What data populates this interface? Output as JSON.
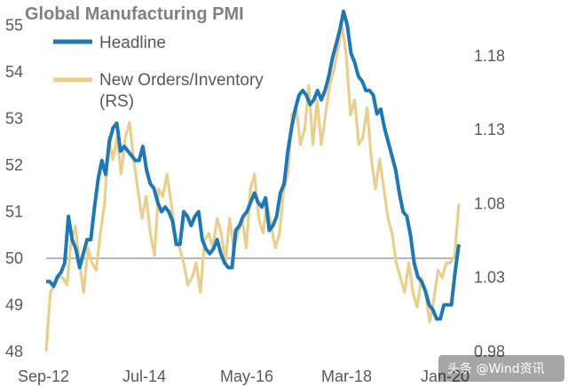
{
  "chart_data": {
    "type": "line",
    "title": "Global Manufacturing PMI",
    "x_ticks": [
      "Sep-12",
      "Jul-14",
      "May-16",
      "Mar-18",
      "Jan-20"
    ],
    "y_left": {
      "ticks": [
        "48",
        "49",
        "50",
        "51",
        "52",
        "53",
        "54",
        "55"
      ],
      "range": [
        48,
        55.2
      ]
    },
    "y_right": {
      "ticks": [
        "0.98",
        "1.03",
        "1.08",
        "1.13",
        "1.18"
      ],
      "range": [
        0.98,
        1.207
      ]
    },
    "reference_line": 50,
    "grid": false,
    "legend_position": "top-left",
    "colors": {
      "headline": "#1f77b4",
      "new_orders": "#e8cf8e",
      "axis": "#808080"
    },
    "series": [
      {
        "name": "Headline",
        "axis": "left",
        "values": [
          49.5,
          49.5,
          49.4,
          49.6,
          49.7,
          49.9,
          50.9,
          50.4,
          50.2,
          49.8,
          50.1,
          50.4,
          50.4,
          51.1,
          51.7,
          52.1,
          51.8,
          52.5,
          52.8,
          52.9,
          52.3,
          52.4,
          52.3,
          52.2,
          52.1,
          52.1,
          52.4,
          51.9,
          51.6,
          51.5,
          51.2,
          51.0,
          51.1,
          51.0,
          50.8,
          50.3,
          50.3,
          51.0,
          50.9,
          50.7,
          50.9,
          51.0,
          50.4,
          50.2,
          50.1,
          50.2,
          50.4,
          50.1,
          49.9,
          49.8,
          49.8,
          50.6,
          50.7,
          50.9,
          51.0,
          51.2,
          51.4,
          51.2,
          51.1,
          51.3,
          50.6,
          50.7,
          50.9,
          51.4,
          51.6,
          52.3,
          52.8,
          53.2,
          53.5,
          53.6,
          53.5,
          53.3,
          53.4,
          53.6,
          53.4,
          53.6,
          53.9,
          54.3,
          54.6,
          54.9,
          55.3,
          55.0,
          54.4,
          54.2,
          53.9,
          53.8,
          53.6,
          53.6,
          53.5,
          53.1,
          53.2,
          52.8,
          52.5,
          52.2,
          51.9,
          51.4,
          51.0,
          50.9,
          50.5,
          49.9,
          49.6,
          49.5,
          49.3,
          49.0,
          48.9,
          48.7,
          48.7,
          49.0,
          49.0,
          49.0,
          49.7,
          50.3
        ]
      },
      {
        "name": "New Orders/Inventory (RS)",
        "axis": "right",
        "values": [
          0.98,
          1.02,
          1.025,
          1.03,
          1.03,
          1.025,
          1.055,
          1.065,
          1.04,
          1.02,
          1.05,
          1.04,
          1.035,
          1.06,
          1.08,
          1.125,
          1.11,
          1.125,
          1.1,
          1.125,
          1.135,
          1.11,
          1.09,
          1.07,
          1.085,
          1.06,
          1.045,
          1.09,
          1.085,
          1.1,
          1.08,
          1.06,
          1.05,
          1.04,
          1.025,
          1.03,
          1.04,
          1.02,
          1.055,
          1.06,
          1.05,
          1.07,
          1.06,
          1.04,
          1.07,
          1.05,
          1.06,
          1.07,
          1.05,
          1.09,
          1.1,
          1.07,
          1.06,
          1.08,
          1.065,
          1.05,
          1.06,
          1.09,
          1.1,
          1.14,
          1.145,
          1.12,
          1.13,
          1.16,
          1.12,
          1.15,
          1.12,
          1.14,
          1.16,
          1.17,
          1.185,
          1.2,
          1.18,
          1.14,
          1.15,
          1.12,
          1.125,
          1.145,
          1.11,
          1.09,
          1.11,
          1.09,
          1.07,
          1.06,
          1.04,
          1.03,
          1.02,
          1.04,
          1.02,
          1.01,
          1.03,
          1.02,
          1.0,
          1.015,
          1.035,
          1.03,
          1.04,
          1.04,
          1.045,
          1.08
        ]
      }
    ]
  },
  "watermark": "头条 @Wind资讯"
}
